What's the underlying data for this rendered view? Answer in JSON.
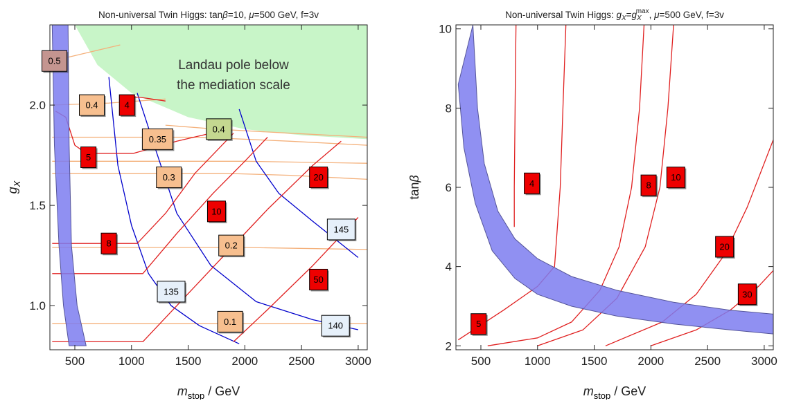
{
  "chart_data": [
    {
      "type": "contour",
      "title_parts": [
        "Non-universal Twin Higgs: tan",
        "β",
        "=10, ",
        "μ",
        "=500 GeV, f=3v"
      ],
      "xlabel_main": "m",
      "xlabel_sub": "stop",
      "xlabel_unit": " / GeV",
      "ylabel_main": "g",
      "ylabel_sub": "X",
      "xlim": [
        280,
        3080
      ],
      "ylim": [
        0.78,
        2.4
      ],
      "xticks": [
        500,
        1000,
        1500,
        2000,
        2500,
        3000
      ],
      "yticks": [
        1.0,
        1.5,
        2.0
      ],
      "ytick_labels": [
        "1.0",
        "1.5",
        "2.0"
      ],
      "annotation": {
        "line1": "Landau pole below",
        "line2": "the mediation scale",
        "x": 1900,
        "y1": 2.18,
        "y2": 2.08
      },
      "colors": {
        "band": "#7c7cf0",
        "band_edge": "#555599",
        "region": "#c8f5c8",
        "tuning": "#e02020",
        "mass": "#0000cc",
        "ratio": "#f4b07a"
      },
      "band": {
        "left": [
          [
            300,
            2.4
          ],
          [
            320,
            1.8
          ],
          [
            360,
            1.3
          ],
          [
            400,
            1.0
          ],
          [
            450,
            0.8
          ]
        ],
        "right": [
          [
            600,
            0.8
          ],
          [
            520,
            1.0
          ],
          [
            470,
            1.3
          ],
          [
            450,
            1.8
          ],
          [
            440,
            2.4
          ]
        ]
      },
      "landau_region": [
        [
          500,
          2.4
        ],
        [
          700,
          2.2
        ],
        [
          1000,
          2.06
        ],
        [
          1500,
          1.94
        ],
        [
          2000,
          1.88
        ],
        [
          2500,
          1.85
        ],
        [
          3080,
          1.83
        ],
        [
          3080,
          2.4
        ]
      ],
      "tuning_contours": [
        {
          "label": "4",
          "label_pos": [
            960,
            2.0
          ],
          "points": [
            [
              900,
              2.03
            ],
            [
              1060,
              2.04
            ],
            [
              1300,
              2.02
            ]
          ]
        },
        {
          "label": "5",
          "label_pos": [
            620,
            1.74
          ],
          "points": [
            [
              330,
              1.97
            ],
            [
              420,
              1.94
            ],
            [
              500,
              1.8
            ],
            [
              600,
              1.76
            ],
            [
              1020,
              1.76
            ],
            [
              1400,
              1.82
            ],
            [
              1700,
              1.86
            ]
          ]
        },
        {
          "label": "8",
          "label_pos": [
            800,
            1.31
          ],
          "points": [
            [
              300,
              1.31
            ],
            [
              1050,
              1.31
            ],
            [
              1300,
              1.46
            ],
            [
              1560,
              1.66
            ],
            [
              1900,
              1.86
            ]
          ]
        },
        {
          "label": "10",
          "label_pos": [
            1750,
            1.47
          ],
          "points": [
            [
              300,
              1.16
            ],
            [
              1100,
              1.16
            ],
            [
              1400,
              1.36
            ],
            [
              1720,
              1.56
            ],
            [
              2000,
              1.72
            ],
            [
              2200,
              1.84
            ]
          ]
        },
        {
          "label": "20",
          "label_pos": [
            2650,
            1.64
          ],
          "points": [
            [
              300,
              0.82
            ],
            [
              1100,
              0.82
            ],
            [
              1400,
              1.0
            ],
            [
              1800,
              1.24
            ],
            [
              2200,
              1.48
            ],
            [
              2600,
              1.7
            ],
            [
              2850,
              1.82
            ]
          ]
        },
        {
          "label": "50",
          "label_pos": [
            2650,
            1.13
          ],
          "points": [
            [
              1900,
              0.82
            ],
            [
              2200,
              0.98
            ],
            [
              2600,
              1.2
            ],
            [
              3000,
              1.44
            ]
          ]
        }
      ],
      "mass_contours": [
        {
          "label": "135",
          "label_pos": [
            1350,
            1.07
          ],
          "points": [
            [
              800,
              2.14
            ],
            [
              880,
              1.7
            ],
            [
              1000,
              1.4
            ],
            [
              1150,
              1.16
            ],
            [
              1350,
              1.0
            ],
            [
              1600,
              0.9
            ],
            [
              1950,
              0.81
            ]
          ]
        },
        {
          "label": "140",
          "label_pos": [
            2800,
            0.9
          ],
          "points": [
            [
              1050,
              2.06
            ],
            [
              1200,
              1.8
            ],
            [
              1400,
              1.46
            ],
            [
              1700,
              1.2
            ],
            [
              2100,
              1.02
            ],
            [
              2600,
              0.93
            ],
            [
              3000,
              0.88
            ]
          ]
        },
        {
          "label": "145",
          "label_pos": [
            2850,
            1.38
          ],
          "points": [
            [
              1950,
              1.98
            ],
            [
              2100,
              1.72
            ],
            [
              2300,
              1.56
            ],
            [
              2600,
              1.42
            ],
            [
              3000,
              1.24
            ]
          ]
        }
      ],
      "ratio_contours": [
        {
          "label": "0.5",
          "label_pos": [
            320,
            2.22
          ],
          "points": [
            [
              300,
              2.22
            ],
            [
              600,
              2.26
            ],
            [
              900,
              2.3
            ]
          ]
        },
        {
          "label": "0.4",
          "label_pos": [
            650,
            2.0
          ],
          "points": [
            [
              300,
              2.0
            ],
            [
              800,
              2.01
            ],
            [
              1300,
              2.03
            ]
          ]
        },
        {
          "label": "0.4",
          "label_pos": [
            1770,
            1.88
          ],
          "points": [
            [
              1300,
              1.9
            ],
            [
              1750,
              1.88
            ],
            [
              2400,
              1.86
            ],
            [
              3080,
              1.84
            ]
          ]
        },
        {
          "label": "0.35",
          "label_pos": [
            1230,
            1.83
          ],
          "points": [
            [
              300,
              1.84
            ],
            [
              800,
              1.84
            ],
            [
              1600,
              1.84
            ],
            [
              2400,
              1.82
            ],
            [
              3080,
              1.8
            ]
          ]
        },
        {
          "label": "0.3",
          "label_pos": [
            1330,
            1.64
          ],
          "points": [
            [
              300,
              1.66
            ],
            [
              1000,
              1.66
            ],
            [
              1800,
              1.66
            ],
            [
              2400,
              1.65
            ],
            [
              3080,
              1.63
            ]
          ]
        },
        {
          "label": "0.3",
          "label_pos": null,
          "points": [
            [
              300,
              1.72
            ],
            [
              1200,
              1.72
            ],
            [
              2000,
              1.72
            ],
            [
              3080,
              1.71
            ]
          ]
        },
        {
          "label": "0.2",
          "label_pos": [
            1880,
            1.3
          ],
          "points": [
            [
              300,
              1.29
            ],
            [
              1000,
              1.29
            ],
            [
              2000,
              1.29
            ],
            [
              3080,
              1.28
            ]
          ]
        },
        {
          "label": "0.1",
          "label_pos": [
            1870,
            0.92
          ],
          "points": [
            [
              300,
              0.91
            ],
            [
              1000,
              0.91
            ],
            [
              2000,
              0.91
            ],
            [
              3080,
              0.91
            ]
          ]
        }
      ]
    },
    {
      "type": "contour",
      "title_parts": [
        "Non-universal Twin Higgs: ",
        "g",
        "X",
        "=",
        "g",
        "X",
        "max",
        ", ",
        "μ",
        "=500 GeV, f=3v"
      ],
      "xlabel_main": "m",
      "xlabel_sub": "stop",
      "xlabel_unit": " / GeV",
      "ylabel_main": "tan",
      "ylabel_greek": "β",
      "xlim": [
        280,
        3080
      ],
      "ylim": [
        1.9,
        10.1
      ],
      "xticks": [
        500,
        1000,
        1500,
        2000,
        2500,
        3000
      ],
      "yticks": [
        2,
        4,
        6,
        8,
        10
      ],
      "ytick_labels": [
        "2",
        "4",
        "6",
        "8",
        "10"
      ],
      "colors": {
        "band": "#7c7cf0",
        "band_edge": "#555599",
        "tuning": "#e02020"
      },
      "band": {
        "upper": [
          [
            430,
            10.1
          ],
          [
            470,
            8.0
          ],
          [
            530,
            6.6
          ],
          [
            650,
            5.4
          ],
          [
            800,
            4.7
          ],
          [
            1000,
            4.2
          ],
          [
            1300,
            3.75
          ],
          [
            1700,
            3.4
          ],
          [
            2200,
            3.1
          ],
          [
            2700,
            2.9
          ],
          [
            3080,
            2.8
          ]
        ],
        "lower": [
          [
            3080,
            2.3
          ],
          [
            2700,
            2.4
          ],
          [
            2200,
            2.55
          ],
          [
            1700,
            2.75
          ],
          [
            1300,
            3.0
          ],
          [
            1000,
            3.3
          ],
          [
            800,
            3.7
          ],
          [
            600,
            4.4
          ],
          [
            450,
            5.6
          ],
          [
            350,
            7.0
          ],
          [
            300,
            8.6
          ]
        ]
      },
      "tuning_contours": [
        {
          "label": "4",
          "label_pos": [
            950,
            6.1
          ],
          "points": [
            [
              795,
              5.0
            ],
            [
              795,
              6.0
            ],
            [
              800,
              7.5
            ],
            [
              805,
              9.0
            ],
            [
              810,
              10.1
            ]
          ]
        },
        {
          "label": "5",
          "label_pos": [
            480,
            2.55
          ],
          "points": [
            [
              300,
              2.15
            ],
            [
              700,
              2.9
            ],
            [
              1000,
              3.5
            ],
            [
              1150,
              4.0
            ],
            [
              1200,
              6.0
            ],
            [
              1230,
              8.5
            ],
            [
              1250,
              10.1
            ]
          ]
        },
        {
          "label": "8",
          "label_pos": [
            1980,
            6.05
          ],
          "points": [
            [
              560,
              2.0
            ],
            [
              1000,
              2.2
            ],
            [
              1300,
              2.6
            ],
            [
              1550,
              3.4
            ],
            [
              1720,
              4.5
            ],
            [
              1830,
              6.0
            ],
            [
              1900,
              8.0
            ],
            [
              1940,
              10.1
            ]
          ]
        },
        {
          "label": "10",
          "label_pos": [
            2220,
            6.25
          ],
          "points": [
            [
              1000,
              2.0
            ],
            [
              1400,
              2.4
            ],
            [
              1700,
              3.2
            ],
            [
              1950,
              4.5
            ],
            [
              2080,
              6.0
            ],
            [
              2150,
              8.0
            ],
            [
              2200,
              10.1
            ]
          ]
        },
        {
          "label": "20",
          "label_pos": [
            2650,
            4.5
          ],
          "points": [
            [
              1600,
              2.0
            ],
            [
              2100,
              2.6
            ],
            [
              2400,
              3.3
            ],
            [
              2650,
              4.3
            ],
            [
              2850,
              5.5
            ],
            [
              3080,
              7.2
            ]
          ]
        },
        {
          "label": "30",
          "label_pos": [
            2850,
            3.3
          ],
          "points": [
            [
              2000,
              2.0
            ],
            [
              2400,
              2.4
            ],
            [
              2700,
              2.9
            ],
            [
              2950,
              3.5
            ],
            [
              3080,
              3.9
            ]
          ]
        }
      ]
    }
  ]
}
